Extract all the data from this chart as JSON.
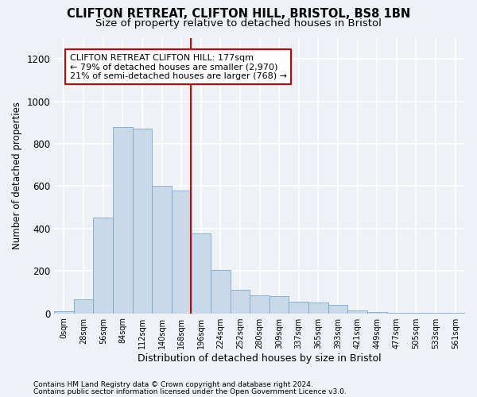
{
  "title1": "CLIFTON RETREAT, CLIFTON HILL, BRISTOL, BS8 1BN",
  "title2": "Size of property relative to detached houses in Bristol",
  "xlabel": "Distribution of detached houses by size in Bristol",
  "ylabel": "Number of detached properties",
  "bar_values": [
    10,
    65,
    450,
    880,
    870,
    600,
    580,
    375,
    205,
    110,
    85,
    80,
    55,
    50,
    40,
    15,
    5,
    3,
    2,
    2,
    2
  ],
  "bar_labels": [
    "0sqm",
    "28sqm",
    "56sqm",
    "84sqm",
    "112sqm",
    "140sqm",
    "168sqm",
    "196sqm",
    "224sqm",
    "252sqm",
    "280sqm",
    "309sqm",
    "337sqm",
    "365sqm",
    "393sqm",
    "421sqm",
    "449sqm",
    "477sqm",
    "505sqm",
    "533sqm",
    "561sqm"
  ],
  "bar_color": "#c9d9e9",
  "bar_edge_color": "#7aaac8",
  "vline_x": 6.5,
  "vline_color": "#cc0000",
  "annotation_text": "CLIFTON RETREAT CLIFTON HILL: 177sqm\n← 79% of detached houses are smaller (2,970)\n21% of semi-detached houses are larger (768) →",
  "annotation_box_color": "#cc0000",
  "ylim": [
    0,
    1300
  ],
  "yticks": [
    0,
    200,
    400,
    600,
    800,
    1000,
    1200
  ],
  "footnote1": "Contains HM Land Registry data © Crown copyright and database right 2024.",
  "footnote2": "Contains public sector information licensed under the Open Government Licence v3.0.",
  "background_color": "#eef2f7",
  "grid_color": "#ffffff",
  "title1_fontsize": 10.5,
  "title2_fontsize": 9.5,
  "ylabel_fontsize": 8.5,
  "xlabel_fontsize": 9,
  "ytick_fontsize": 8.5,
  "xtick_fontsize": 7,
  "footnote_fontsize": 6.5,
  "ann_fontsize": 8
}
